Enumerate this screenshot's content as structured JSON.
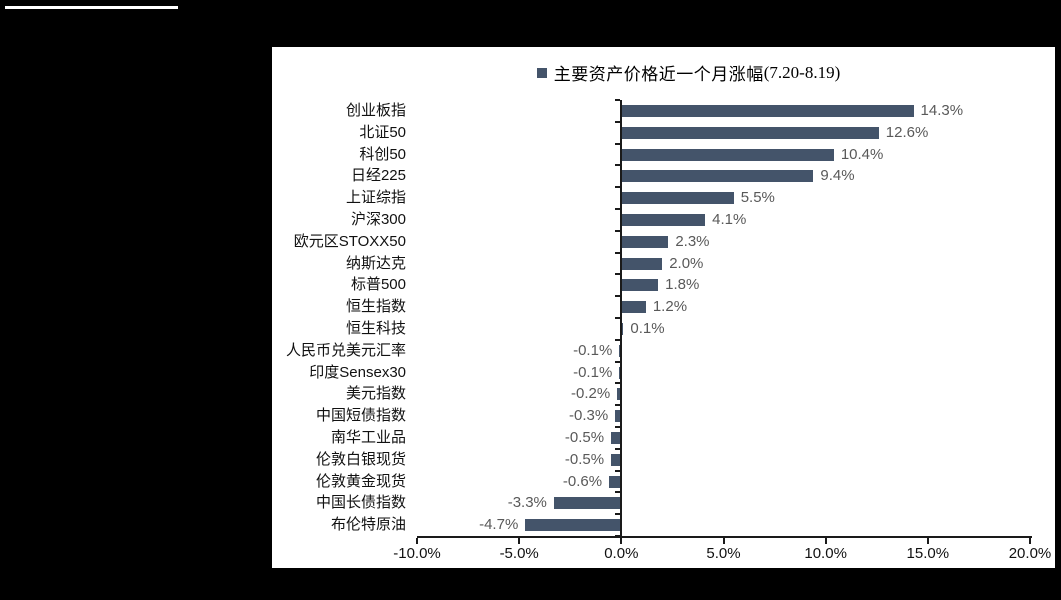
{
  "window": {
    "background_color": "#000000",
    "top_left_line_color": "#ffffff"
  },
  "chart": {
    "panel_bg": "#ffffff",
    "legend": {
      "marker_color": "#44546A",
      "label": "主要资产价格近一个月涨幅",
      "period": "(7.20-8.19)"
    }
  },
  "chart_data": {
    "type": "bar",
    "orientation": "horizontal",
    "title": "主要资产价格近一个月涨幅(7.20-8.19)",
    "legend_position": "top",
    "grid": false,
    "categories": [
      "创业板指",
      "北证50",
      "科创50",
      "日经225",
      "上证综指",
      "沪深300",
      "欧元区STOXX50",
      "纳斯达克",
      "标普500",
      "恒生指数",
      "恒生科技",
      "人民币兑美元汇率",
      "印度Sensex30",
      "美元指数",
      "中国短债指数",
      "南华工业品",
      "伦敦白银现货",
      "伦敦黄金现货",
      "中国长债指数",
      "布伦特原油"
    ],
    "values": [
      14.3,
      12.6,
      10.4,
      9.4,
      5.5,
      4.1,
      2.3,
      2.0,
      1.8,
      1.2,
      0.1,
      -0.1,
      -0.1,
      -0.2,
      -0.3,
      -0.5,
      -0.5,
      -0.6,
      -3.3,
      -4.7
    ],
    "value_labels": [
      "14.3%",
      "12.6%",
      "10.4%",
      "9.4%",
      "5.5%",
      "4.1%",
      "2.3%",
      "2.0%",
      "1.8%",
      "1.2%",
      "0.1%",
      "-0.1%",
      "-0.1%",
      "-0.2%",
      "-0.3%",
      "-0.5%",
      "-0.5%",
      "-0.6%",
      "-3.3%",
      "-4.7%"
    ],
    "xlim": [
      -10,
      20
    ],
    "x_ticks": [
      -10,
      -5,
      0,
      5,
      10,
      15,
      20
    ],
    "x_tick_labels": [
      "-10.0%",
      "-5.0%",
      "0.0%",
      "5.0%",
      "10.0%",
      "15.0%",
      "20.0%"
    ],
    "bar_color": "#44546A",
    "value_label_color": "#595959",
    "axis_color": "#1a1a1a",
    "text_color": "#111111"
  }
}
